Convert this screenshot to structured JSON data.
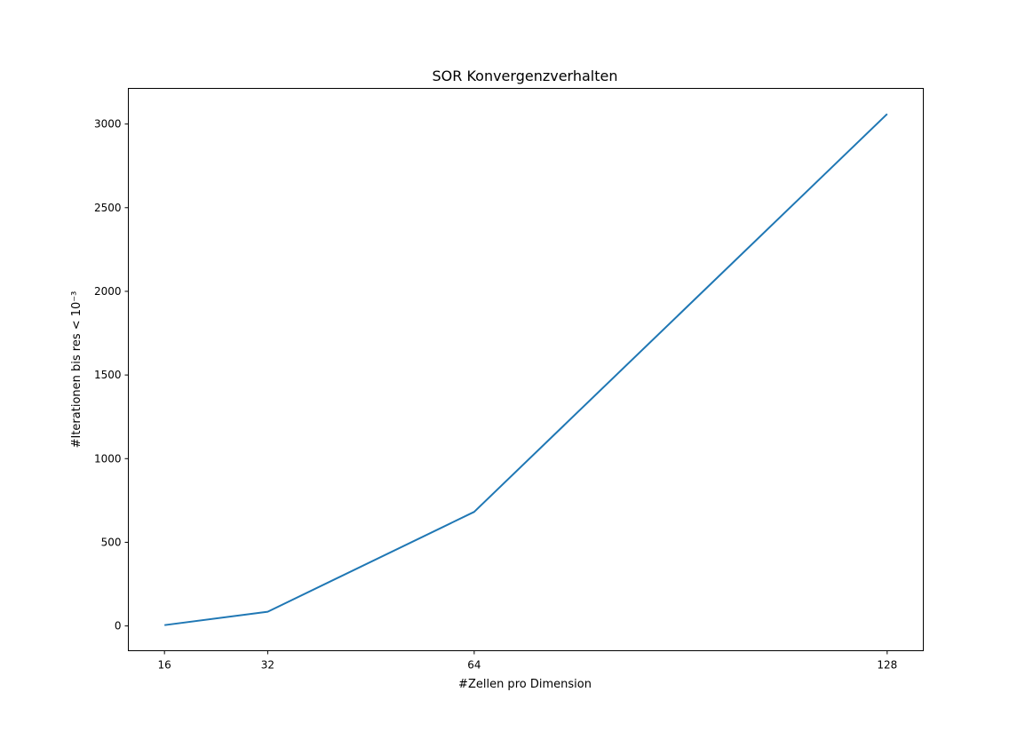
{
  "chart_data": {
    "type": "line",
    "title": "SOR Konvergenzverhalten",
    "xlabel": "#Zellen pro Dimension",
    "ylabel": "#Iterationen bis res < 10⁻³",
    "x": [
      16,
      32,
      64,
      128
    ],
    "series": [
      {
        "values": [
          5,
          85,
          682,
          3060
        ],
        "color": "#1f77b4"
      }
    ],
    "xticks": [
      "16",
      "32",
      "64",
      "128"
    ],
    "yticks": [
      "0",
      "500",
      "1000",
      "1500",
      "2000",
      "2500",
      "3000"
    ],
    "xlim": [
      10.4,
      133.6
    ],
    "ylim": [
      -148,
      3213
    ],
    "grid": false
  }
}
